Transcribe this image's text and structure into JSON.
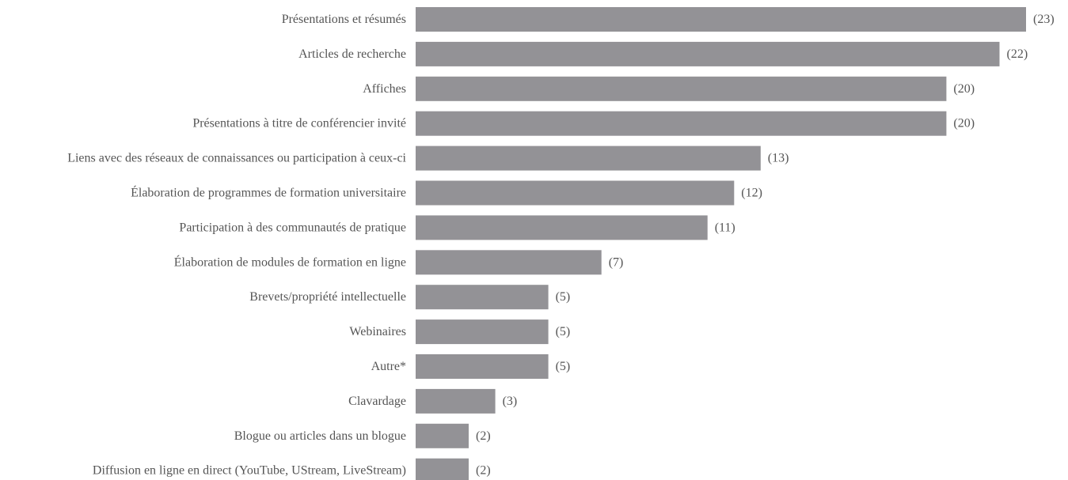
{
  "chart_data": {
    "type": "bar",
    "orientation": "horizontal",
    "categories": [
      "Présentations et résumés",
      "Articles de recherche",
      "Affiches",
      "Présentations à titre de conférencier invité",
      "Liens avec des réseaux de connaissances ou participation à ceux-ci",
      "Élaboration de programmes de formation universitaire",
      "Participation à des communautés de pratique",
      "Élaboration de modules de formation en ligne",
      "Brevets/propriété intellectuelle",
      "Webinaires",
      "Autre*",
      "Clavardage",
      "Blogue ou articles dans un blogue",
      "Diffusion en ligne en direct (YouTube, UStream, LiveStream)"
    ],
    "values": [
      23,
      22,
      20,
      20,
      13,
      12,
      11,
      7,
      5,
      5,
      5,
      3,
      2,
      2
    ],
    "value_labels": [
      "(23)",
      "(22)",
      "(20)",
      "(20)",
      "(13)",
      "(12)",
      "(11)",
      "(7)",
      "(5)",
      "(5)",
      "(5)",
      "(3)",
      "(2)",
      "(2)"
    ],
    "title": "",
    "xlabel": "",
    "ylabel": "",
    "xlim": [
      0,
      23
    ],
    "grid": false,
    "legend": "none",
    "bar_color": "#939296",
    "text_color": "#555555"
  }
}
